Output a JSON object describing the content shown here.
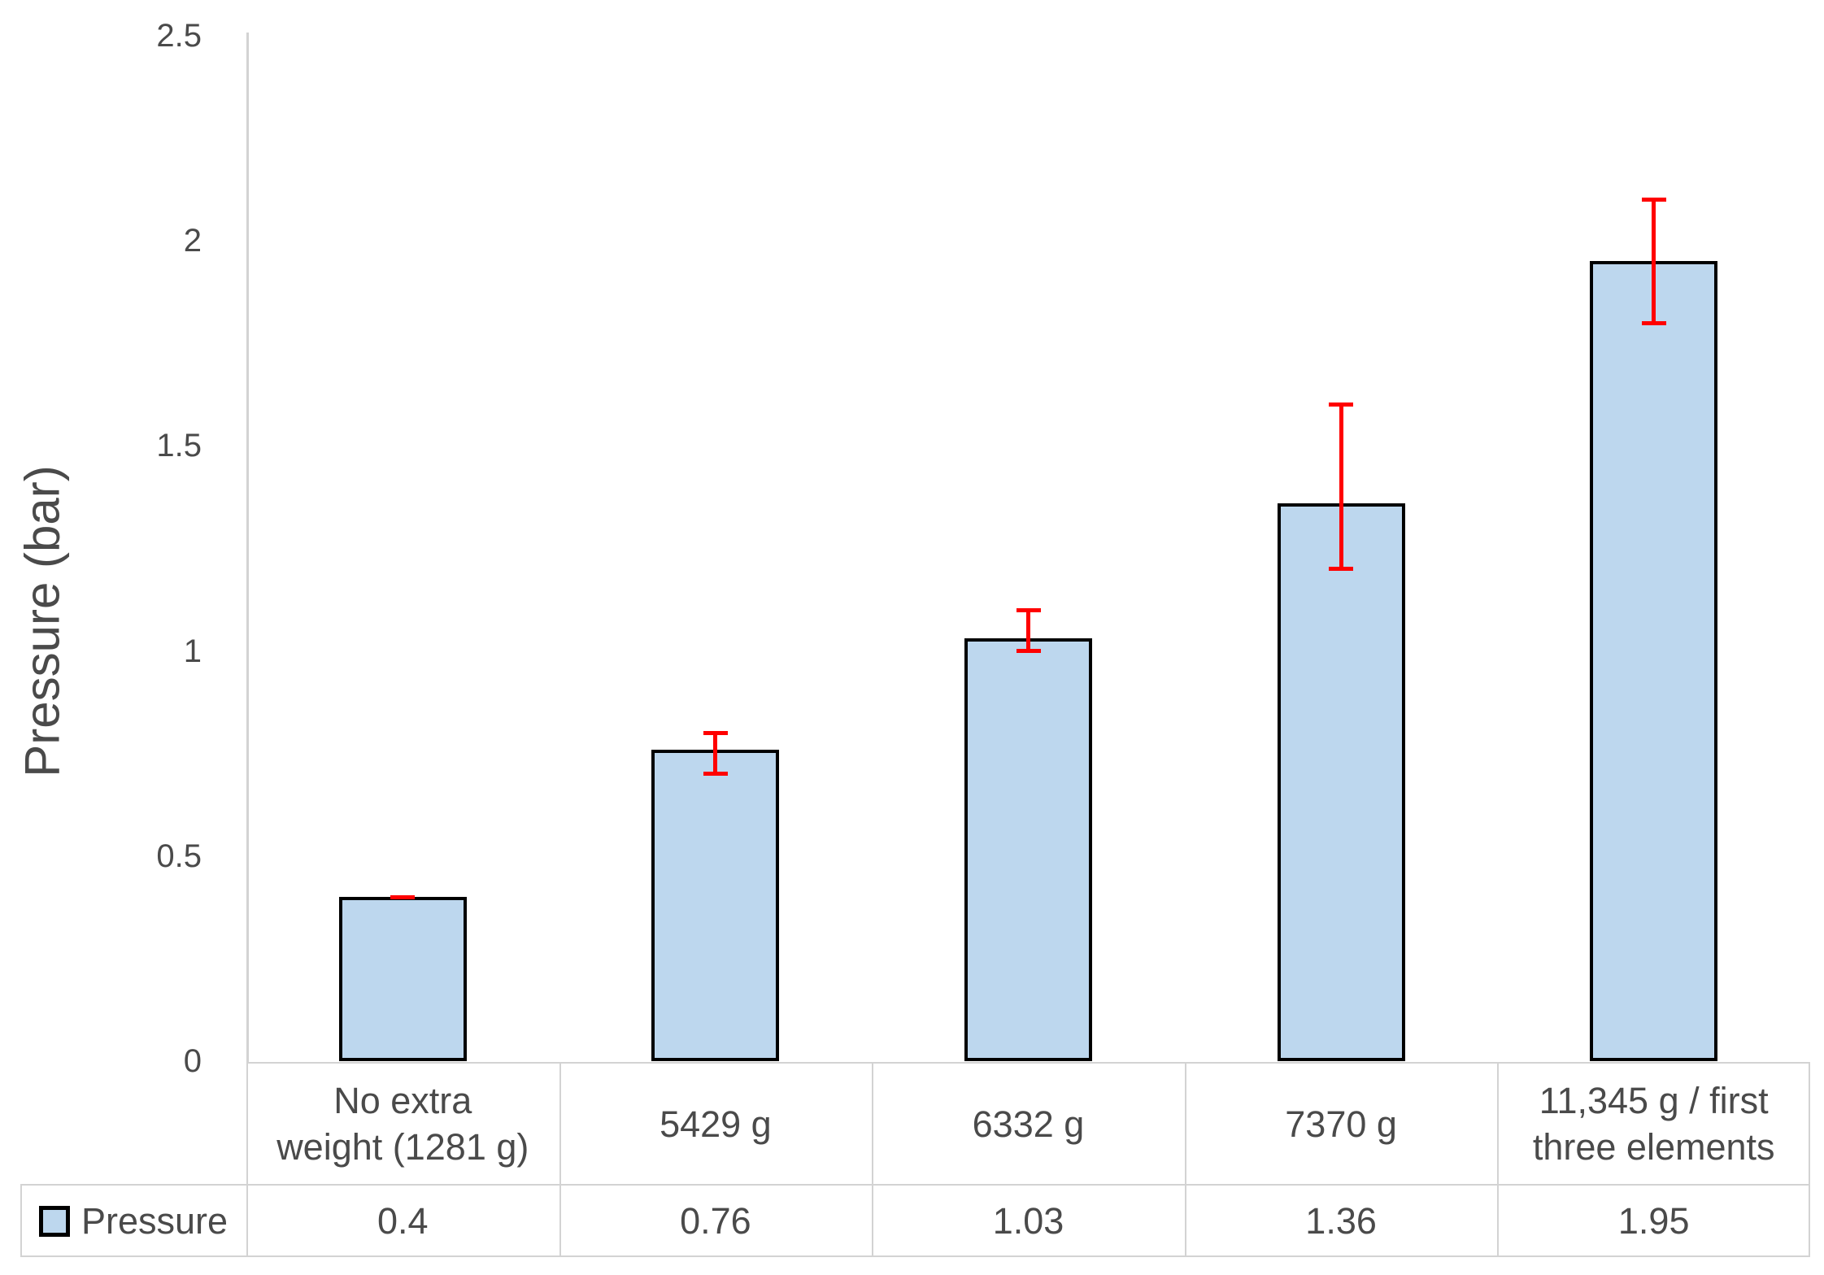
{
  "chart_data": {
    "type": "bar",
    "title": "",
    "ylabel": "Pressure (bar)",
    "xlabel": "",
    "ylim": [
      0,
      2.5
    ],
    "yticks": [
      0,
      0.5,
      1,
      1.5,
      2,
      2.5
    ],
    "ytick_labels": [
      "0",
      "0.5",
      "1",
      "1.5",
      "2",
      "2.5"
    ],
    "grid": false,
    "legend_position": "data-table-left",
    "categories": [
      "No extra\nweight (1281 g)",
      "5429 g",
      "6332 g",
      "7370 g",
      "11,345 g / first\nthree elements"
    ],
    "series": [
      {
        "name": "Pressure",
        "values": [
          0.4,
          0.76,
          1.03,
          1.36,
          1.95
        ],
        "value_labels": [
          "0.4",
          "0.76",
          "1.03",
          "1.36",
          "1.95"
        ],
        "error_up": [
          0,
          0.04,
          0.07,
          0.24,
          0.15
        ],
        "error_down": [
          0,
          0.06,
          0.03,
          0.16,
          0.15
        ]
      }
    ],
    "colors": {
      "bar_fill": "#BDD7EE",
      "bar_border": "#000000",
      "error_bar": "#FF0000",
      "grid_line": "#D3D3D3",
      "text": "#4A4A4A",
      "background": "#FFFFFF"
    }
  }
}
